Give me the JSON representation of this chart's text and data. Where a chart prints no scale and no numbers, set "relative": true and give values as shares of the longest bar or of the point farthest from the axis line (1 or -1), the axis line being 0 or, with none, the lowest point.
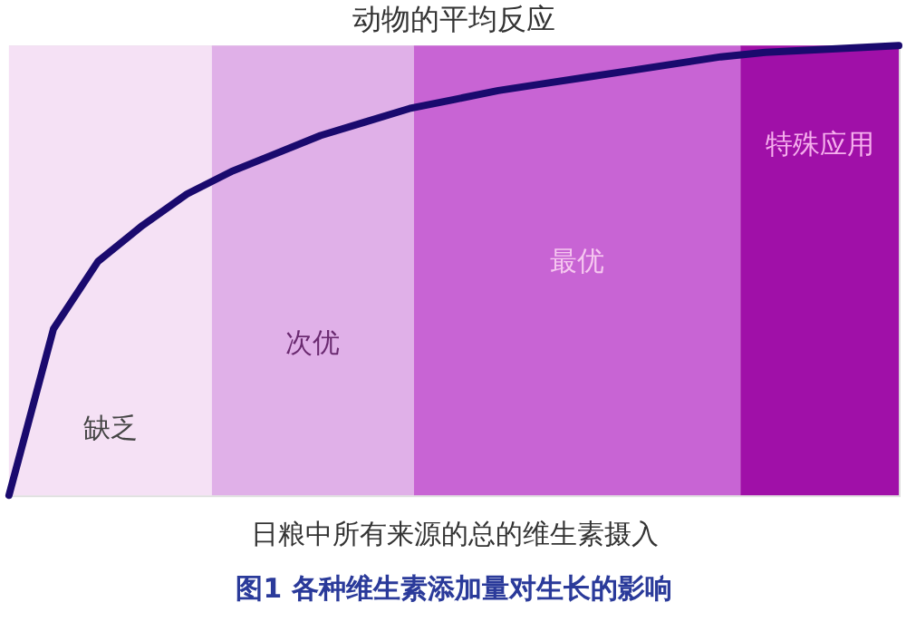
{
  "chart_data": {
    "type": "line",
    "title": "动物的平均反应",
    "xlabel": "日粮中所有来源的总的维生素摄入",
    "relative": true,
    "marker": "none",
    "categories": [
      null,
      null,
      null,
      null,
      null,
      null,
      null,
      null,
      null,
      null,
      null,
      null,
      null,
      null,
      null,
      null,
      null,
      null,
      null,
      null,
      null
    ],
    "annotations": [
      "缺乏",
      "次优",
      "最优",
      "特殊应用",
      "图1 各种维生素添加量对生长的影响"
    ],
    "series": [
      {
        "color": "#1a0a6e",
        "values": [
          0,
          0.37,
          0.52,
          0.6,
          0.67,
          0.72,
          0.76,
          0.8,
          0.83,
          0.86,
          0.88,
          0.9,
          0.915,
          0.93,
          0.945,
          0.96,
          0.975,
          0.985,
          0.99,
          0.995,
          1
        ]
      }
    ]
  }
}
